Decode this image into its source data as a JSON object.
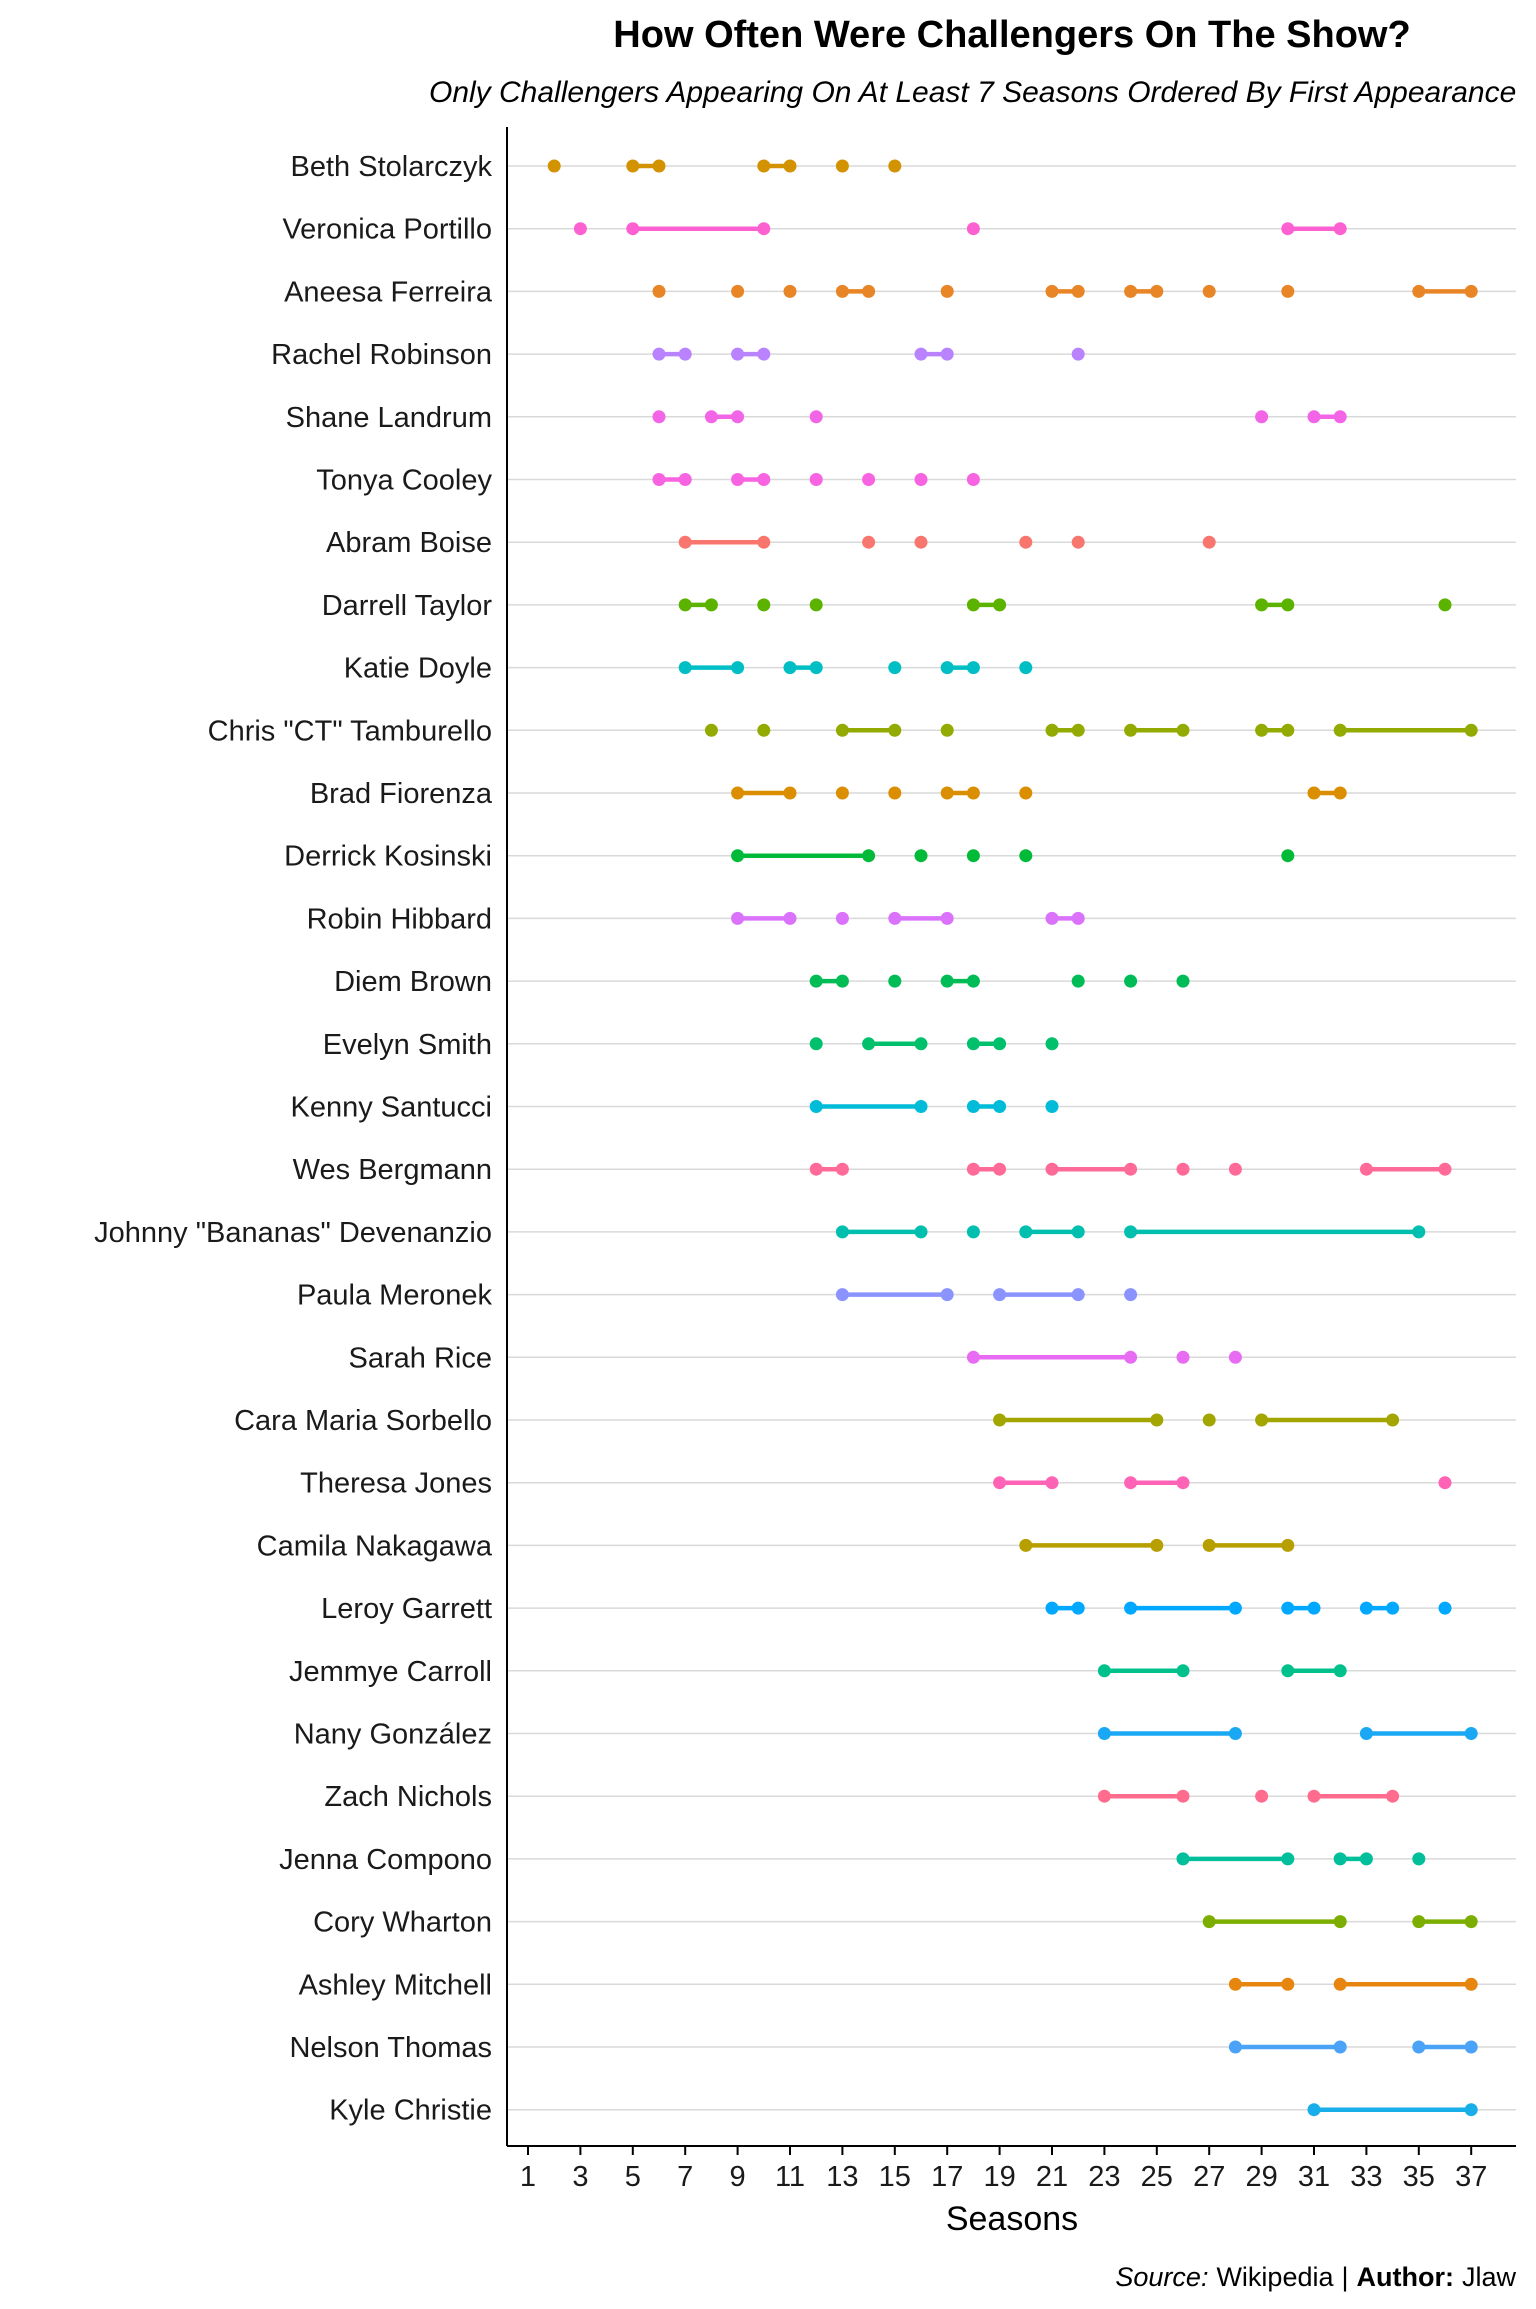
{
  "chart_data": {
    "type": "dumbbell",
    "title": "How Often Were Challengers On The Show?",
    "subtitle": "Only Challengers Appearing On At Least 7 Seasons Ordered By First Appearance",
    "xlabel": "Seasons",
    "ylabel": "",
    "xlim": [
      1,
      37
    ],
    "x_ticks": [
      1,
      3,
      5,
      7,
      9,
      11,
      13,
      15,
      17,
      19,
      21,
      23,
      25,
      27,
      29,
      31,
      33,
      35,
      37
    ],
    "grid": "horizontal",
    "legend": "none",
    "caption": {
      "source_label": "Source:",
      "source_value": "Wikipedia",
      "separator": "|",
      "author_label": "Author:",
      "author_value": "Jlaw"
    },
    "series": [
      {
        "name": "Beth Stolarczyk",
        "color": "#D39200",
        "segments": [
          [
            2,
            2
          ],
          [
            5,
            6
          ],
          [
            10,
            11
          ],
          [
            13,
            13
          ],
          [
            15,
            15
          ]
        ]
      },
      {
        "name": "Veronica Portillo",
        "color": "#FD61D1",
        "segments": [
          [
            3,
            3
          ],
          [
            5,
            10
          ],
          [
            18,
            18
          ],
          [
            30,
            32
          ]
        ]
      },
      {
        "name": "Aneesa Ferreira",
        "color": "#E88526",
        "segments": [
          [
            6,
            6
          ],
          [
            9,
            9
          ],
          [
            11,
            11
          ],
          [
            13,
            14
          ],
          [
            17,
            17
          ],
          [
            21,
            22
          ],
          [
            24,
            25
          ],
          [
            27,
            27
          ],
          [
            30,
            30
          ],
          [
            35,
            37
          ]
        ]
      },
      {
        "name": "Rachel Robinson",
        "color": "#B983FF",
        "segments": [
          [
            6,
            7
          ],
          [
            9,
            10
          ],
          [
            16,
            17
          ],
          [
            22,
            22
          ]
        ]
      },
      {
        "name": "Shane Landrum",
        "color": "#F265E7",
        "segments": [
          [
            6,
            6
          ],
          [
            8,
            9
          ],
          [
            12,
            12
          ],
          [
            29,
            29
          ],
          [
            31,
            32
          ]
        ]
      },
      {
        "name": "Tonya Cooley",
        "color": "#F763E0",
        "segments": [
          [
            6,
            7
          ],
          [
            9,
            10
          ],
          [
            12,
            12
          ],
          [
            14,
            14
          ],
          [
            16,
            16
          ],
          [
            18,
            18
          ]
        ]
      },
      {
        "name": "Abram Boise",
        "color": "#F8766D",
        "segments": [
          [
            7,
            10
          ],
          [
            14,
            14
          ],
          [
            16,
            16
          ],
          [
            20,
            20
          ],
          [
            22,
            22
          ],
          [
            27,
            27
          ]
        ]
      },
      {
        "name": "Darrell Taylor",
        "color": "#5BB300",
        "segments": [
          [
            7,
            8
          ],
          [
            10,
            10
          ],
          [
            12,
            12
          ],
          [
            18,
            19
          ],
          [
            29,
            30
          ],
          [
            36,
            36
          ]
        ]
      },
      {
        "name": "Katie Doyle",
        "color": "#00BFC4",
        "segments": [
          [
            7,
            9
          ],
          [
            11,
            12
          ],
          [
            15,
            15
          ],
          [
            17,
            18
          ],
          [
            20,
            20
          ]
        ]
      },
      {
        "name": "Chris \"CT\" Tamburello",
        "color": "#93AA00",
        "segments": [
          [
            8,
            8
          ],
          [
            10,
            10
          ],
          [
            13,
            15
          ],
          [
            17,
            17
          ],
          [
            21,
            22
          ],
          [
            24,
            26
          ],
          [
            29,
            30
          ],
          [
            32,
            37
          ]
        ]
      },
      {
        "name": "Brad Fiorenza",
        "color": "#DB8E00",
        "segments": [
          [
            9,
            11
          ],
          [
            13,
            13
          ],
          [
            15,
            15
          ],
          [
            17,
            18
          ],
          [
            20,
            20
          ],
          [
            31,
            32
          ]
        ]
      },
      {
        "name": "Derrick Kosinski",
        "color": "#00BA38",
        "segments": [
          [
            9,
            14
          ],
          [
            16,
            16
          ],
          [
            18,
            18
          ],
          [
            20,
            20
          ],
          [
            30,
            30
          ]
        ]
      },
      {
        "name": "Robin Hibbard",
        "color": "#DB72FB",
        "segments": [
          [
            9,
            11
          ],
          [
            13,
            13
          ],
          [
            15,
            17
          ],
          [
            21,
            22
          ]
        ]
      },
      {
        "name": "Diem Brown",
        "color": "#00BC56",
        "segments": [
          [
            12,
            13
          ],
          [
            15,
            15
          ],
          [
            17,
            18
          ],
          [
            22,
            22
          ],
          [
            24,
            24
          ],
          [
            26,
            26
          ]
        ]
      },
      {
        "name": "Evelyn Smith",
        "color": "#00C06B",
        "segments": [
          [
            12,
            12
          ],
          [
            14,
            16
          ],
          [
            18,
            19
          ],
          [
            21,
            21
          ]
        ]
      },
      {
        "name": "Kenny Santucci",
        "color": "#00BCD8",
        "segments": [
          [
            12,
            16
          ],
          [
            18,
            19
          ],
          [
            21,
            21
          ]
        ]
      },
      {
        "name": "Wes Bergmann",
        "color": "#FF6A98",
        "segments": [
          [
            12,
            13
          ],
          [
            18,
            19
          ],
          [
            21,
            24
          ],
          [
            26,
            26
          ],
          [
            28,
            28
          ],
          [
            33,
            36
          ]
        ]
      },
      {
        "name": "Johnny \"Bananas\" Devenanzio",
        "color": "#00BFAE",
        "segments": [
          [
            13,
            16
          ],
          [
            18,
            18
          ],
          [
            20,
            22
          ],
          [
            24,
            35
          ]
        ]
      },
      {
        "name": "Paula Meronek",
        "color": "#8B93FF",
        "segments": [
          [
            13,
            17
          ],
          [
            19,
            22
          ],
          [
            24,
            24
          ]
        ]
      },
      {
        "name": "Sarah Rice",
        "color": "#E76BF3",
        "segments": [
          [
            18,
            24
          ],
          [
            26,
            26
          ],
          [
            28,
            28
          ]
        ]
      },
      {
        "name": "Cara Maria Sorbello",
        "color": "#A3A500",
        "segments": [
          [
            19,
            25
          ],
          [
            27,
            27
          ],
          [
            29,
            34
          ]
        ]
      },
      {
        "name": "Theresa Jones",
        "color": "#FF63B6",
        "segments": [
          [
            19,
            21
          ],
          [
            24,
            26
          ],
          [
            36,
            36
          ]
        ]
      },
      {
        "name": "Camila Nakagawa",
        "color": "#B79F00",
        "segments": [
          [
            20,
            25
          ],
          [
            27,
            30
          ]
        ]
      },
      {
        "name": "Leroy Garrett",
        "color": "#00A9FF",
        "segments": [
          [
            21,
            22
          ],
          [
            24,
            28
          ],
          [
            30,
            31
          ],
          [
            33,
            34
          ],
          [
            36,
            36
          ]
        ]
      },
      {
        "name": "Jemmye Carroll",
        "color": "#00C08B",
        "segments": [
          [
            23,
            26
          ],
          [
            30,
            32
          ]
        ]
      },
      {
        "name": "Nany González",
        "color": "#1AA8F4",
        "segments": [
          [
            23,
            28
          ],
          [
            33,
            37
          ]
        ]
      },
      {
        "name": "Zach Nichols",
        "color": "#FF6C8E",
        "segments": [
          [
            23,
            26
          ],
          [
            29,
            29
          ],
          [
            31,
            34
          ]
        ]
      },
      {
        "name": "Jenna Compono",
        "color": "#00BF9A",
        "segments": [
          [
            26,
            30
          ],
          [
            32,
            33
          ],
          [
            35,
            35
          ]
        ]
      },
      {
        "name": "Cory Wharton",
        "color": "#7CAE00",
        "segments": [
          [
            27,
            32
          ],
          [
            35,
            37
          ]
        ]
      },
      {
        "name": "Ashley Mitchell",
        "color": "#E6860F",
        "segments": [
          [
            28,
            30
          ],
          [
            32,
            37
          ]
        ]
      },
      {
        "name": "Nelson Thomas",
        "color": "#4AA3F6",
        "segments": [
          [
            28,
            32
          ],
          [
            35,
            37
          ]
        ]
      },
      {
        "name": "Kyle Christie",
        "color": "#17AEEA",
        "segments": [
          [
            31,
            37
          ]
        ]
      }
    ]
  }
}
